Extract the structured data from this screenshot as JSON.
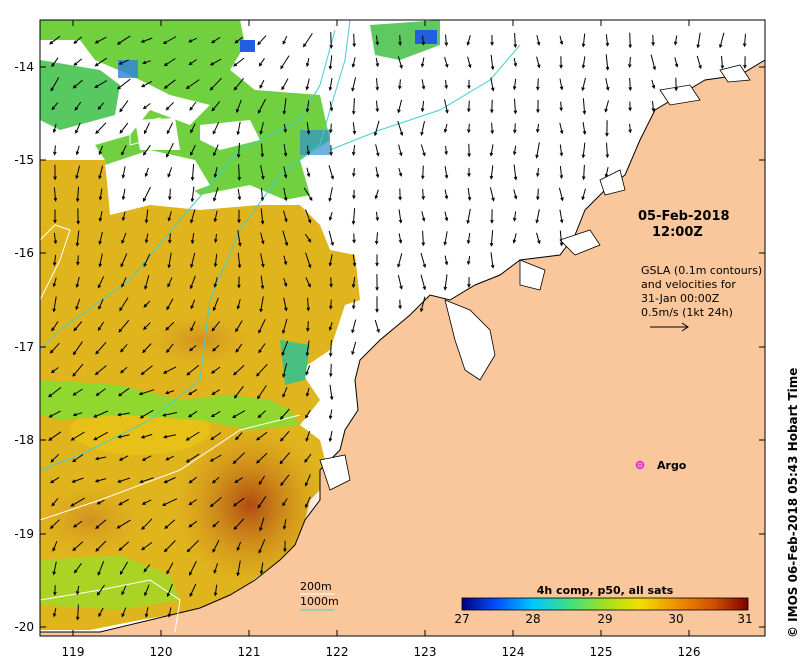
{
  "map": {
    "x_ticks": [
      "119",
      "120",
      "121",
      "122",
      "123",
      "124",
      "125",
      "126"
    ],
    "y_ticks": [
      "-14",
      "-15",
      "-16",
      "-17",
      "-18",
      "-19",
      "-20"
    ],
    "colors": {
      "land": "#fac79c",
      "no_data": "#ffffff",
      "contour_200m": "#ffffff",
      "contour_1000m": "#40d0d0",
      "argo": "#e020e0"
    }
  },
  "annotations": {
    "date_line1": "05-Feb-2018",
    "date_line2": "12:00Z",
    "gsla_lines": [
      "GSLA (0.1m contours)",
      "and velocities for",
      "31-Jan 00:00Z",
      "0.5m/s (1kt 24h)"
    ],
    "argo_label": "Argo",
    "legend_200m": "200m",
    "legend_1000m": "1000m"
  },
  "colorbar": {
    "title": "4h comp, p50, all sats",
    "ticks": [
      "27",
      "28",
      "29",
      "30",
      "31"
    ],
    "range": [
      27,
      31
    ],
    "stops": [
      "#00007f",
      "#0050ff",
      "#00c8ff",
      "#40e080",
      "#a0e020",
      "#f0e000",
      "#f09000",
      "#d05000",
      "#7f0000"
    ]
  },
  "credit": "© IMOS 06-Feb-2018 05:43 Hobart Time"
}
